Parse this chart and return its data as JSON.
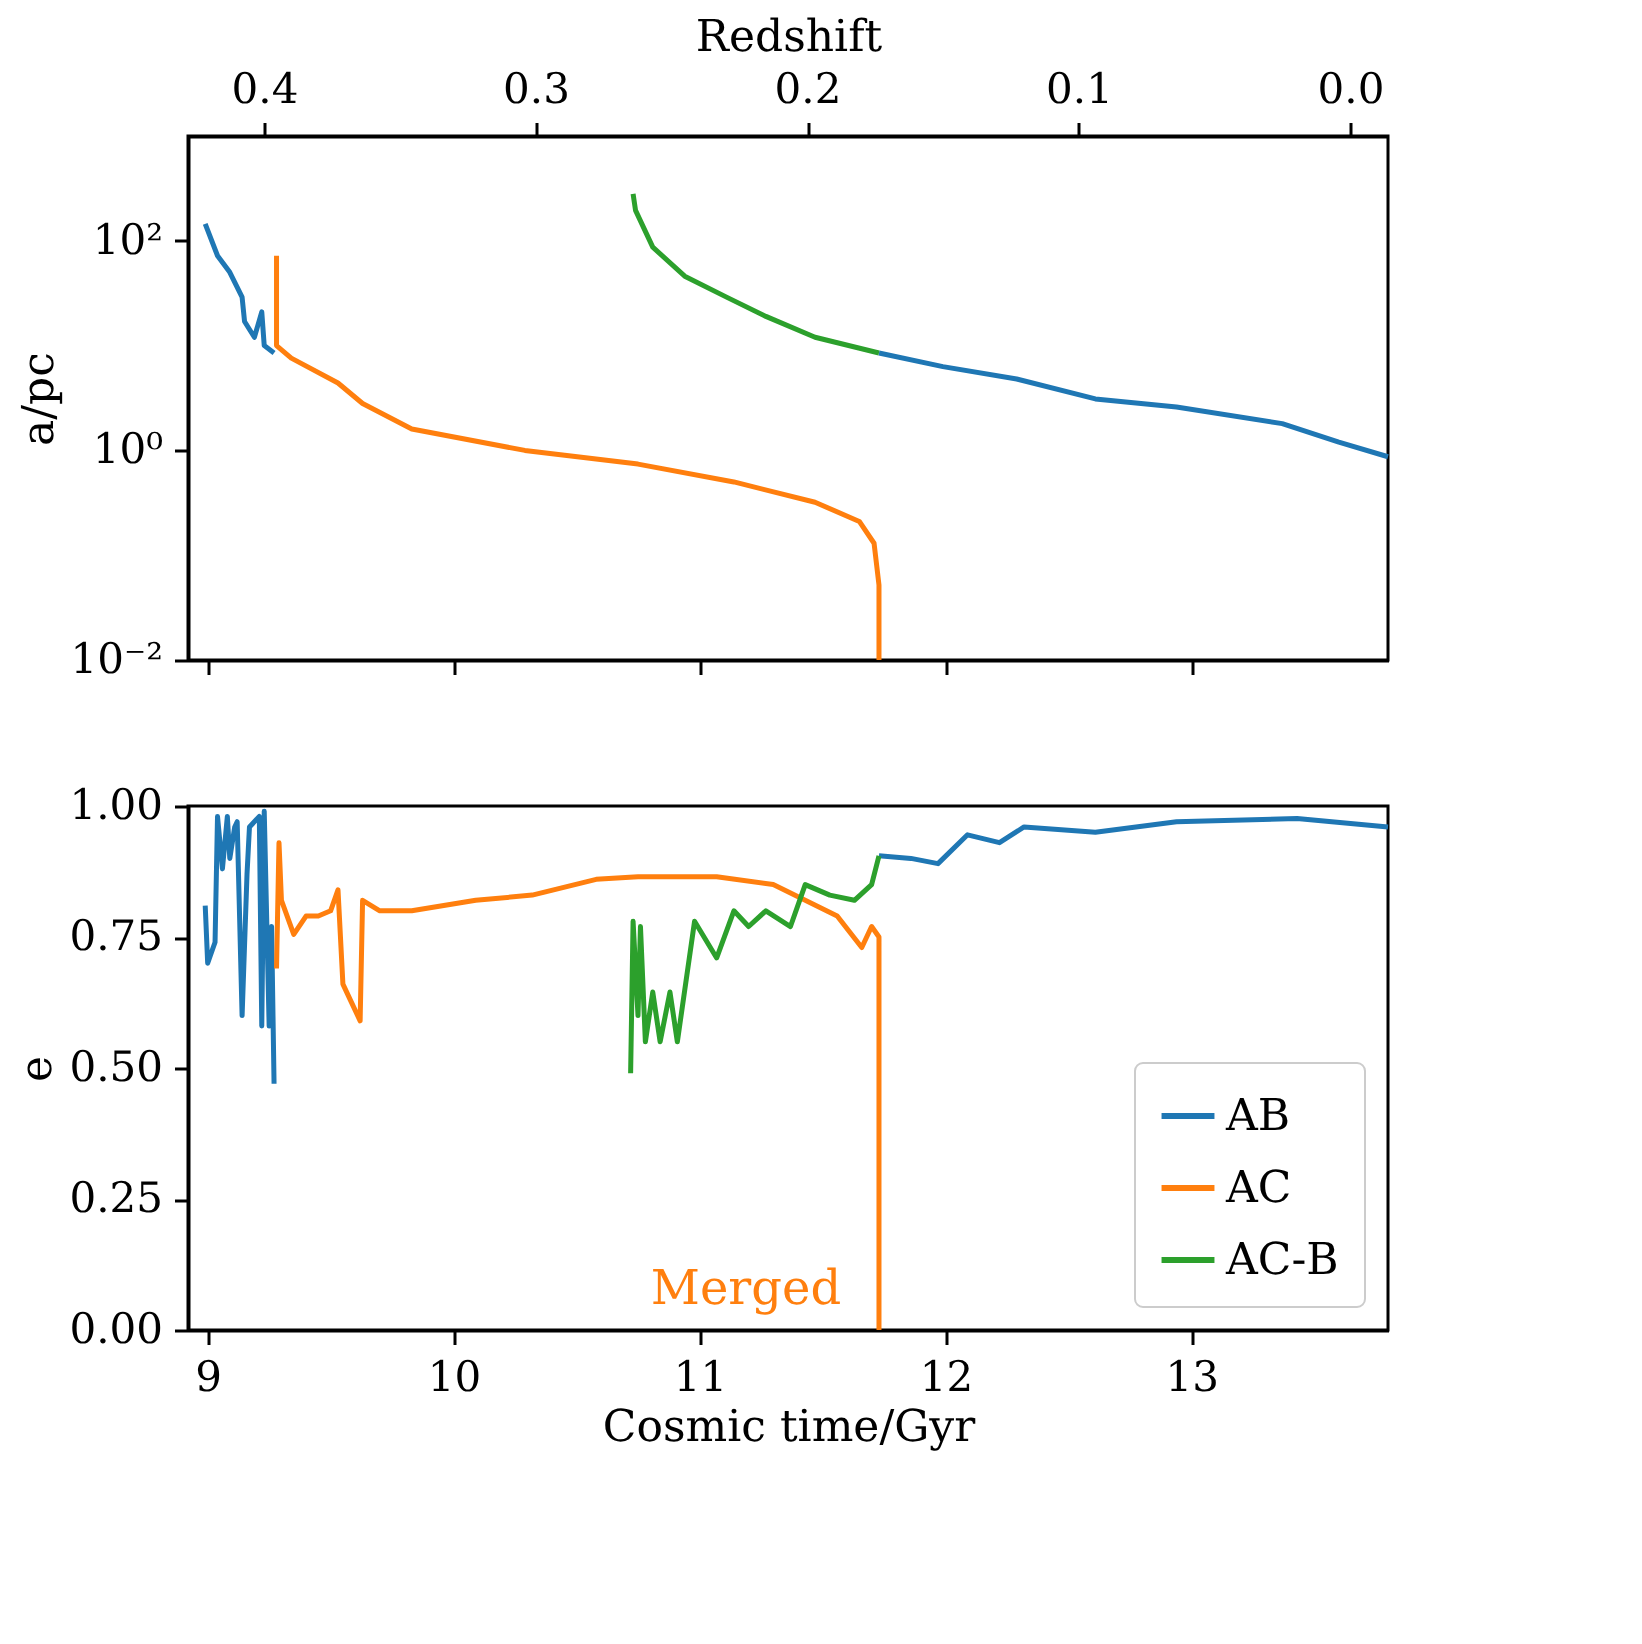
{
  "chart_data": [
    {
      "type": "line",
      "ylabel": "a/pc",
      "x2label": "Redshift",
      "log": "y",
      "grid": false,
      "tick_labels": "y",
      "xlim": [
        8.92,
        13.8
      ],
      "xticks": [
        9,
        10,
        11,
        12,
        13
      ],
      "ylim": [
        0.01,
        1000
      ],
      "yticks": [
        {
          "value": 0.01,
          "label": "10⁻²"
        },
        {
          "value": 1,
          "label": "10⁰"
        },
        {
          "value": 100,
          "label": "10²"
        }
      ],
      "x2lim": [
        0.428,
        -0.014
      ],
      "x2ticks": [
        {
          "value": 0.4,
          "label": "0.4"
        },
        {
          "value": 0.3,
          "label": "0.3"
        },
        {
          "value": 0.2,
          "label": "0.2"
        },
        {
          "value": 0.1,
          "label": "0.1"
        },
        {
          "value": 0,
          "label": "0.0"
        }
      ],
      "series": [
        {
          "color": "#1f77b4",
          "x": [
            8.99,
            9.04,
            9.09,
            9.14,
            9.15,
            9.19,
            9.22,
            9.23,
            9.27,
            null,
            11.73,
            11.99,
            12.29,
            12.61,
            12.94,
            13.37,
            13.6,
            13.8
          ],
          "values": [
            145,
            72,
            50,
            29,
            17,
            12,
            21,
            10,
            8.5,
            null,
            8.5,
            6.3,
            4.8,
            3.1,
            2.6,
            1.8,
            1.2,
            0.87
          ]
        },
        {
          "color": "#ff7f0e",
          "x": [
            9.28,
            9.28,
            9.34,
            9.53,
            9.63,
            9.83,
            10.29,
            10.75,
            11.14,
            11.47,
            11.65,
            11.71,
            11.73,
            11.73
          ],
          "values": [
            72,
            10,
            7.6,
            4.4,
            2.8,
            1.6,
            1.0,
            0.74,
            0.5,
            0.32,
            0.21,
            0.13,
            0.052,
            0.01
          ]
        },
        {
          "color": "#2ca02c",
          "x": [
            10.73,
            10.74,
            10.81,
            10.94,
            11.11,
            11.27,
            11.47,
            11.73
          ],
          "values": [
            280,
            195,
            87,
            46,
            29,
            19,
            12,
            8.5
          ]
        }
      ]
    },
    {
      "type": "line",
      "xlabel": "Cosmic time/Gyr",
      "ylabel": "e",
      "grid": false,
      "legend": "bottom right",
      "xlim": [
        8.92,
        13.8
      ],
      "xticks": [
        9,
        10,
        11,
        12,
        13
      ],
      "ylim": [
        0,
        1
      ],
      "yticks": [
        {
          "value": 0,
          "label": "0.00"
        },
        {
          "value": 0.25,
          "label": "0.25"
        },
        {
          "value": 0.5,
          "label": "0.50"
        },
        {
          "value": 0.75,
          "label": "0.75"
        },
        {
          "value": 1,
          "label": "1.00"
        }
      ],
      "annotations": [
        "Merged"
      ],
      "series": [
        {
          "name": "AB",
          "color": "#1f77b4",
          "x": [
            8.99,
            9.0,
            9.03,
            9.04,
            9.06,
            9.08,
            9.09,
            9.11,
            9.12,
            9.14,
            9.16,
            9.17,
            9.21,
            9.22,
            9.23,
            9.25,
            9.26,
            9.27,
            null,
            11.73,
            11.86,
            11.97,
            12.09,
            12.22,
            12.32,
            12.61,
            12.94,
            13.43,
            13.8
          ],
          "values": [
            0.81,
            0.7,
            0.74,
            0.98,
            0.88,
            0.98,
            0.9,
            0.96,
            0.97,
            0.6,
            0.87,
            0.96,
            0.98,
            0.58,
            0.99,
            0.58,
            0.77,
            0.47,
            null,
            0.905,
            0.9,
            0.89,
            0.945,
            0.93,
            0.96,
            0.95,
            0.97,
            0.976,
            0.96
          ]
        },
        {
          "name": "AC",
          "color": "#ff7f0e",
          "x": [
            9.28,
            9.29,
            9.3,
            9.35,
            9.4,
            9.45,
            9.5,
            9.53,
            9.55,
            9.58,
            9.62,
            9.63,
            9.7,
            9.83,
            10.09,
            10.32,
            10.58,
            10.75,
            11.07,
            11.3,
            11.43,
            11.56,
            11.66,
            11.7,
            11.73,
            11.73,
            11.73
          ],
          "values": [
            0.69,
            0.93,
            0.82,
            0.755,
            0.79,
            0.79,
            0.8,
            0.84,
            0.66,
            0.63,
            0.59,
            0.82,
            0.8,
            0.8,
            0.82,
            0.83,
            0.86,
            0.865,
            0.865,
            0.85,
            0.82,
            0.79,
            0.73,
            0.77,
            0.75,
            0.01,
            0
          ]
        },
        {
          "name": "AC-B",
          "color": "#2ca02c",
          "x": [
            10.72,
            10.73,
            10.75,
            10.76,
            10.78,
            10.81,
            10.84,
            10.88,
            10.91,
            10.98,
            11.07,
            11.14,
            11.2,
            11.27,
            11.37,
            11.43,
            11.53,
            11.63,
            11.7,
            11.73
          ],
          "values": [
            0.49,
            0.78,
            0.6,
            0.77,
            0.55,
            0.645,
            0.55,
            0.645,
            0.55,
            0.78,
            0.71,
            0.8,
            0.77,
            0.8,
            0.77,
            0.85,
            0.83,
            0.82,
            0.85,
            0.905
          ]
        }
      ]
    }
  ]
}
